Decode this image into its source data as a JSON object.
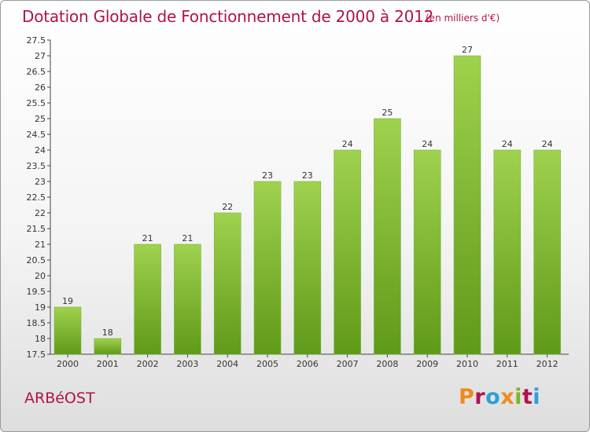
{
  "header": {
    "title": "Dotation Globale de Fonctionnement de 2000 à 2012",
    "unit": "(en milliers d'€)"
  },
  "footer": {
    "commune": "ARBéOST",
    "brand": "Proxiti"
  },
  "chart_data": {
    "type": "bar",
    "title": "Dotation Globale de Fonctionnement de 2000 à 2012",
    "subtitle": "(en milliers d'€)",
    "xlabel": "",
    "ylabel": "",
    "categories": [
      "2000",
      "2001",
      "2002",
      "2003",
      "2004",
      "2005",
      "2006",
      "2007",
      "2008",
      "2009",
      "2010",
      "2011",
      "2012"
    ],
    "values": [
      19,
      18,
      21,
      21,
      22,
      23,
      23,
      24,
      25,
      24,
      27,
      24,
      24
    ],
    "data_labels": [
      "19",
      "18",
      "21",
      "21",
      "22",
      "23",
      "23",
      "24",
      "25",
      "24",
      "27",
      "24",
      "24"
    ],
    "ylim": [
      17.5,
      27.5
    ],
    "yticks": [
      "17.5",
      "18",
      "18.5",
      "19",
      "19.5",
      "20",
      "20.5",
      "21",
      "21.5",
      "22",
      "22.5",
      "23",
      "23.5",
      "24",
      "24.5",
      "25",
      "25.5",
      "26",
      "26.5",
      "27",
      "27.5"
    ],
    "grid": false,
    "legend": "none",
    "colors": {
      "bar_light": "#9fd24e",
      "bar_dark": "#5f9a18",
      "title": "#b0124f"
    }
  },
  "brand_colors": [
    "#f18a1c",
    "#b0124f",
    "#2aa0d8",
    "#f18a1c",
    "#7bb52a",
    "#b0124f",
    "#2aa0d8"
  ]
}
